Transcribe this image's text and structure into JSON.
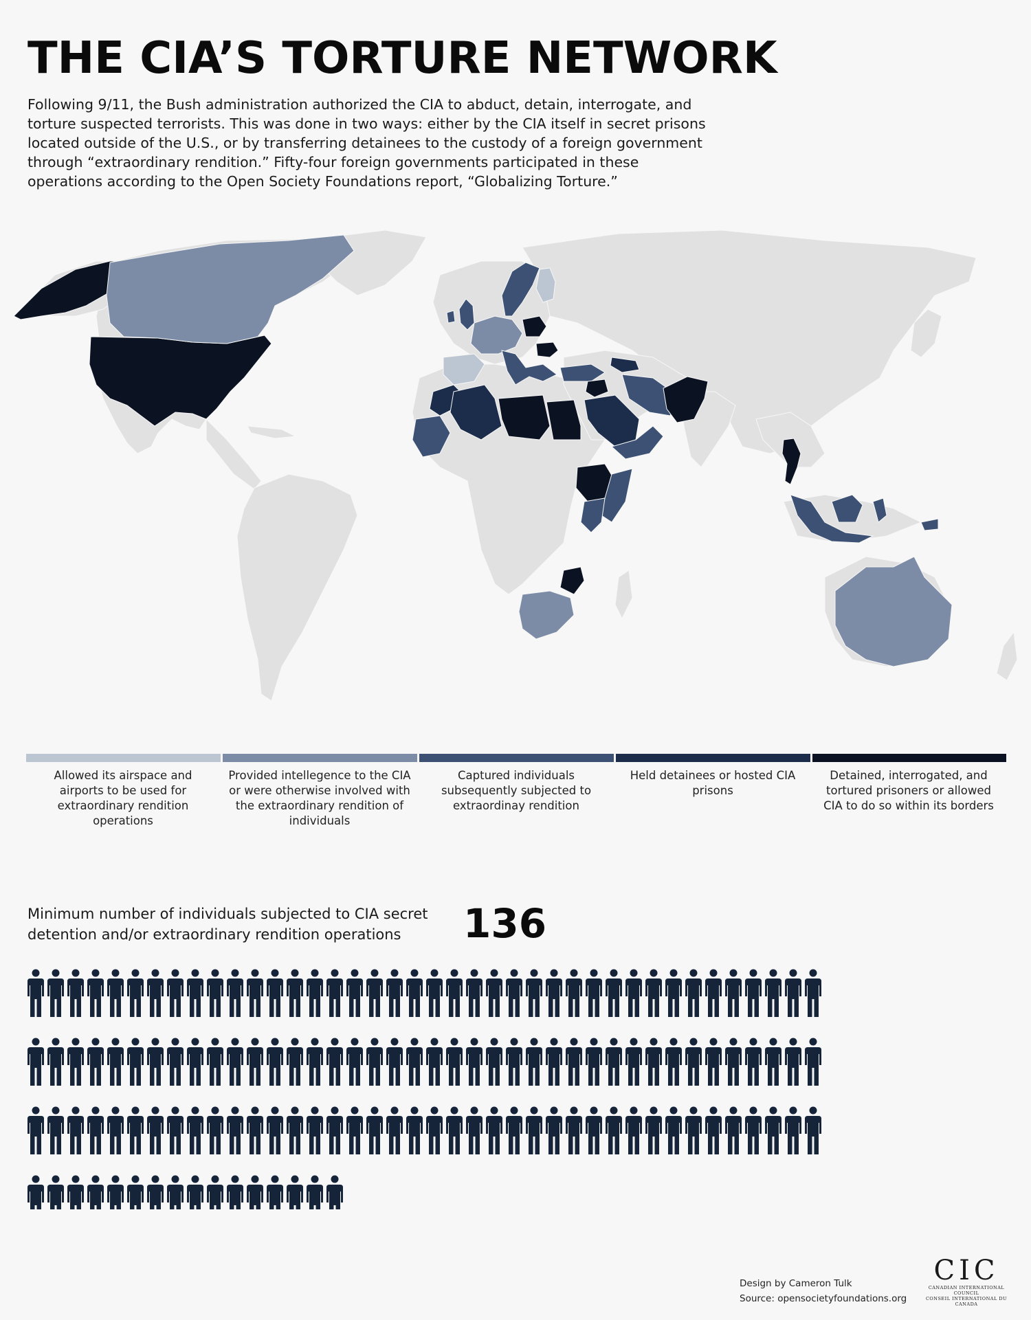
{
  "title": "THE CIA’S TORTURE NETWORK",
  "intro": "Following 9/11, the Bush administration authorized the CIA to abduct, detain, interrogate, and torture suspected terrorists. This was done in two ways: either by the CIA itself in secret prisons located outside of the U.S., or by transferring detainees to the custody of a foreign government through “extraordinary rendition.” Fifty-four foreign governments participated in these operations according to the Open Society Foundations report, “Globalizing Torture.”",
  "colors": {
    "background": "#f7f7f7",
    "land": "#e1e1e1",
    "level1": "#bcc6d3",
    "level2": "#7d8ca6",
    "level3": "#3c5173",
    "level4": "#1c2d4b",
    "level5": "#0b1222",
    "person": "#16243a"
  },
  "legend": [
    {
      "level": 1,
      "color": "#bcc6d3",
      "label": "Allowed its airspace and airports to be used for extraordinary rendition operations"
    },
    {
      "level": 2,
      "color": "#7d8ca6",
      "label": "Provided intellegence to the CIA or were otherwise involved with the extraordinary rendition of individuals"
    },
    {
      "level": 3,
      "color": "#3c5173",
      "label": "Captured individuals subsequently subjected to extraordinay rendition"
    },
    {
      "level": 4,
      "color": "#1c2d4b",
      "label": "Held detainees or hosted CIA prisons"
    },
    {
      "level": 5,
      "color": "#0b1222",
      "label": "Detained, interrogated, and tortured prisoners or allowed CIA to do so within its borders"
    }
  ],
  "map_regions": [
    {
      "region": "alaska",
      "level": 5
    },
    {
      "region": "usa",
      "level": 5
    },
    {
      "region": "canada",
      "level": 2
    },
    {
      "region": "uk-ireland",
      "level": 3
    },
    {
      "region": "scandinavia",
      "level": 3
    },
    {
      "region": "finland",
      "level": 1
    },
    {
      "region": "spain-portugal",
      "level": 1
    },
    {
      "region": "western-europe",
      "level": 2
    },
    {
      "region": "poland",
      "level": 5
    },
    {
      "region": "romania",
      "level": 5
    },
    {
      "region": "italy-balkans",
      "level": 3
    },
    {
      "region": "turkey",
      "level": 3
    },
    {
      "region": "morocco",
      "level": 4
    },
    {
      "region": "algeria",
      "level": 4
    },
    {
      "region": "mauritania",
      "level": 3
    },
    {
      "region": "libya",
      "level": 5
    },
    {
      "region": "egypt",
      "level": 5
    },
    {
      "region": "syria",
      "level": 5
    },
    {
      "region": "saudi-arabia",
      "level": 4
    },
    {
      "region": "yemen-oman",
      "level": 3
    },
    {
      "region": "iran",
      "level": 3
    },
    {
      "region": "afghanistan-pakistan",
      "level": 5
    },
    {
      "region": "georgia-azerbaijan",
      "level": 4
    },
    {
      "region": "ethiopia",
      "level": 5
    },
    {
      "region": "somalia",
      "level": 3
    },
    {
      "region": "kenya",
      "level": 3
    },
    {
      "region": "malawi-zimbabwe",
      "level": 5
    },
    {
      "region": "south-africa",
      "level": 2
    },
    {
      "region": "thailand",
      "level": 5
    },
    {
      "region": "malaysia-indonesia",
      "level": 3
    },
    {
      "region": "australia",
      "level": 2
    }
  ],
  "count": {
    "label": "Minimum number of individuals subjected to CIA secret detention and/or extraordinary rendition operations",
    "value": "136",
    "icon": "person-icon",
    "per_row": 40,
    "total": 136
  },
  "credit": {
    "design": "Design by Cameron Tulk",
    "source": "Source: opensocietyfoundations.org"
  },
  "logo": {
    "mark": "CIC",
    "line1": "Canadian International Council",
    "line2": "Conseil International du Canada"
  }
}
